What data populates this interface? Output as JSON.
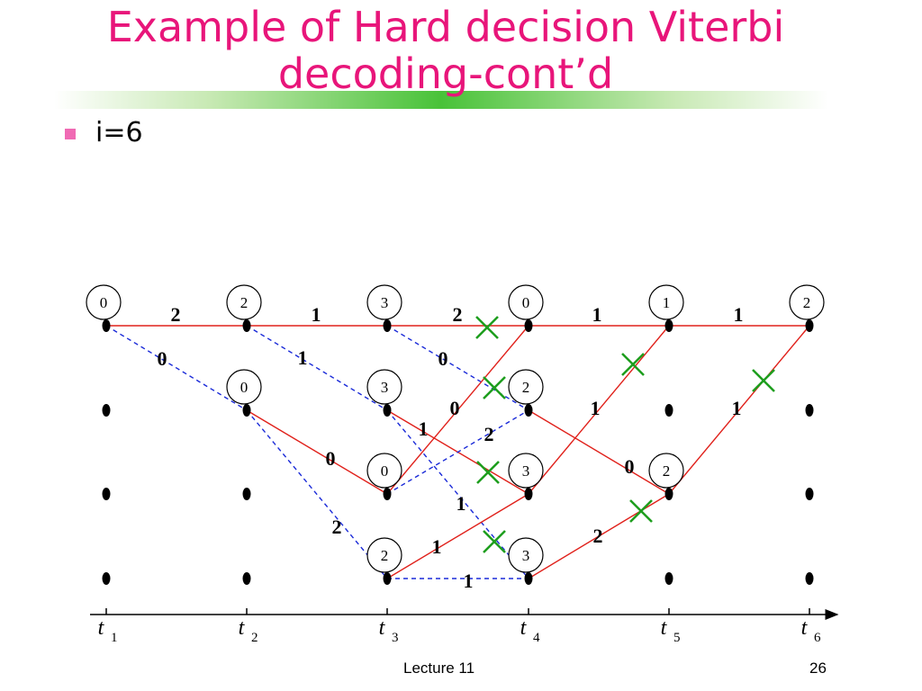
{
  "slide": {
    "title_line1": "Example of Hard decision Viterbi",
    "title_line2": "decoding-cont’d",
    "bullet": "i=6",
    "footer_left": "Lecture 11",
    "footer_right": "26",
    "colors": {
      "title": "#e8157a",
      "bullet": "#f06ab4",
      "branch_solid": "#e0201a",
      "branch_dashed": "#1a2ad8",
      "cross": "#1e9e1e"
    }
  },
  "trellis": {
    "time_labels": [
      {
        "t": "t",
        "sub": "1"
      },
      {
        "t": "t",
        "sub": "2"
      },
      {
        "t": "t",
        "sub": "3"
      },
      {
        "t": "t",
        "sub": "4"
      },
      {
        "t": "t",
        "sub": "5"
      },
      {
        "t": "t",
        "sub": "6"
      }
    ],
    "states_per_time": 4,
    "path_metrics": [
      {
        "time": 1,
        "state": 1,
        "value": "0"
      },
      {
        "time": 2,
        "state": 1,
        "value": "2"
      },
      {
        "time": 2,
        "state": 2,
        "value": "0"
      },
      {
        "time": 3,
        "state": 1,
        "value": "3"
      },
      {
        "time": 3,
        "state": 2,
        "value": "3"
      },
      {
        "time": 3,
        "state": 3,
        "value": "0"
      },
      {
        "time": 3,
        "state": 4,
        "value": "2"
      },
      {
        "time": 4,
        "state": 1,
        "value": "0"
      },
      {
        "time": 4,
        "state": 2,
        "value": "2"
      },
      {
        "time": 4,
        "state": 3,
        "value": "3"
      },
      {
        "time": 4,
        "state": 4,
        "value": "3"
      },
      {
        "time": 5,
        "state": 1,
        "value": "1"
      },
      {
        "time": 5,
        "state": 3,
        "value": "2"
      },
      {
        "time": 6,
        "state": 1,
        "value": "2"
      }
    ],
    "branches": [
      {
        "from": [
          1,
          1
        ],
        "to": [
          2,
          1
        ],
        "style": "solid",
        "label": "2"
      },
      {
        "from": [
          1,
          1
        ],
        "to": [
          2,
          2
        ],
        "style": "dashed",
        "label": "0"
      },
      {
        "from": [
          2,
          1
        ],
        "to": [
          3,
          1
        ],
        "style": "solid",
        "label": "1"
      },
      {
        "from": [
          2,
          1
        ],
        "to": [
          3,
          2
        ],
        "style": "dashed",
        "label": "1"
      },
      {
        "from": [
          2,
          2
        ],
        "to": [
          3,
          3
        ],
        "style": "solid",
        "label": "0"
      },
      {
        "from": [
          2,
          2
        ],
        "to": [
          3,
          4
        ],
        "style": "dashed",
        "label": "2"
      },
      {
        "from": [
          3,
          1
        ],
        "to": [
          4,
          1
        ],
        "style": "solid",
        "label": "2"
      },
      {
        "from": [
          3,
          1
        ],
        "to": [
          4,
          2
        ],
        "style": "dashed",
        "label": "0"
      },
      {
        "from": [
          3,
          2
        ],
        "to": [
          4,
          3
        ],
        "style": "solid",
        "label": "1"
      },
      {
        "from": [
          3,
          2
        ],
        "to": [
          4,
          4
        ],
        "style": "dashed",
        "label": "1"
      },
      {
        "from": [
          3,
          3
        ],
        "to": [
          4,
          1
        ],
        "style": "solid",
        "label": "0"
      },
      {
        "from": [
          3,
          3
        ],
        "to": [
          4,
          2
        ],
        "style": "dashed",
        "label": "2"
      },
      {
        "from": [
          3,
          4
        ],
        "to": [
          4,
          3
        ],
        "style": "solid",
        "label": "1"
      },
      {
        "from": [
          3,
          4
        ],
        "to": [
          4,
          4
        ],
        "style": "dashed",
        "label": "1"
      },
      {
        "from": [
          4,
          1
        ],
        "to": [
          5,
          1
        ],
        "style": "solid",
        "label": "1"
      },
      {
        "from": [
          4,
          2
        ],
        "to": [
          5,
          3
        ],
        "style": "solid",
        "label": "0"
      },
      {
        "from": [
          4,
          3
        ],
        "to": [
          5,
          1
        ],
        "style": "solid",
        "label": "1"
      },
      {
        "from": [
          4,
          4
        ],
        "to": [
          5,
          3
        ],
        "style": "solid",
        "label": "2"
      },
      {
        "from": [
          5,
          1
        ],
        "to": [
          6,
          1
        ],
        "style": "solid",
        "label": "1"
      },
      {
        "from": [
          5,
          3
        ],
        "to": [
          6,
          1
        ],
        "style": "solid",
        "label": "1"
      }
    ],
    "eliminated_marks": 7
  }
}
